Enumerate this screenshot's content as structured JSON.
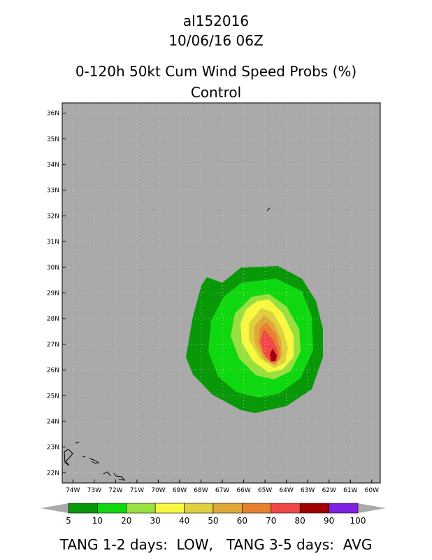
{
  "header": {
    "storm_id": "al152016",
    "datetime": "10/06/16 06Z",
    "product": "0-120h 50kt Cum Wind Speed Probs (%)",
    "run": "Control"
  },
  "map": {
    "background_color": "#a9a9a9",
    "lon_labels": [
      "74W",
      "73W",
      "72W",
      "71W",
      "70W",
      "69W",
      "68W",
      "67W",
      "66W",
      "65W",
      "64W",
      "63W",
      "62W",
      "61W",
      "60W"
    ],
    "lat_labels": [
      "22N",
      "23N",
      "24N",
      "25N",
      "26N",
      "27N",
      "28N",
      "29N",
      "30N",
      "31N",
      "32N",
      "33N",
      "34N",
      "35N",
      "36N"
    ],
    "lon_range": [
      -74.5,
      -59.6
    ],
    "lat_range": [
      21.6,
      36.4
    ]
  },
  "colorbar": {
    "levels": [
      "5",
      "10",
      "20",
      "30",
      "40",
      "50",
      "60",
      "70",
      "80",
      "90",
      "100"
    ],
    "colors": [
      "#089808",
      "#10d810",
      "#98e040",
      "#f8f840",
      "#e0d040",
      "#e0a838",
      "#e88030",
      "#f04848",
      "#a00000",
      "#8020e0"
    ],
    "arrow_color": "#a9a9a9"
  },
  "footer": {
    "text": "TANG 1-2 days:  LOW,   TANG 3-5 days:  AVG"
  }
}
